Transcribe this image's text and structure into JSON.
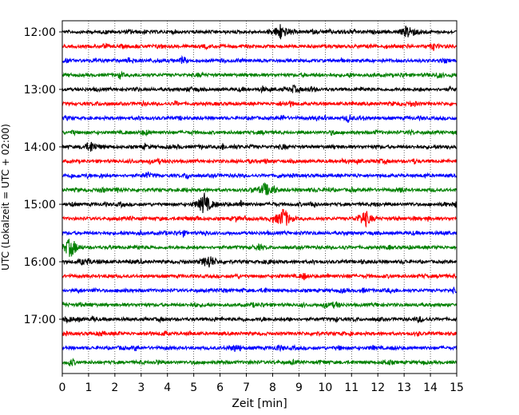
{
  "chart_data": {
    "type": "line",
    "title": "",
    "xlabel": "Zeit  [min]",
    "ylabel": "UTC (Lokalzeit = UTC + 02:00)",
    "xlim": [
      0,
      15
    ],
    "x_ticks": [
      "0",
      "1",
      "2",
      "3",
      "4",
      "5",
      "6",
      "7",
      "8",
      "9",
      "10",
      "11",
      "12",
      "13",
      "14",
      "15"
    ],
    "y_ticks": [
      {
        "label": "12:00",
        "trace": 0
      },
      {
        "label": "13:00",
        "trace": 4
      },
      {
        "label": "14:00",
        "trace": 8
      },
      {
        "label": "15:00",
        "trace": 12
      },
      {
        "label": "16:00",
        "trace": 16
      },
      {
        "label": "17:00",
        "trace": 20
      }
    ],
    "grid": "vertical dotted",
    "trace_colors": [
      "#000000",
      "#ff0000",
      "#0000ff",
      "#008000"
    ],
    "traces_count": 24,
    "events": [
      {
        "trace": 0,
        "minute": 8.3,
        "amplitude": 1.0
      },
      {
        "trace": 0,
        "minute": 13.2,
        "amplitude": 0.8
      },
      {
        "trace": 1,
        "minute": 14.1,
        "amplitude": 0.5
      },
      {
        "trace": 2,
        "minute": 4.6,
        "amplitude": 0.6
      },
      {
        "trace": 3,
        "minute": 2.2,
        "amplitude": 0.4
      },
      {
        "trace": 4,
        "minute": 8.8,
        "amplitude": 0.5
      },
      {
        "trace": 4,
        "minute": 9.5,
        "amplitude": 0.35
      },
      {
        "trace": 5,
        "minute": 8.7,
        "amplitude": 0.3
      },
      {
        "trace": 6,
        "minute": 10.9,
        "amplitude": 0.5
      },
      {
        "trace": 8,
        "minute": 1.1,
        "amplitude": 0.7
      },
      {
        "trace": 8,
        "minute": 6.1,
        "amplitude": 0.35
      },
      {
        "trace": 8,
        "minute": 8.4,
        "amplitude": 0.3
      },
      {
        "trace": 9,
        "minute": 13.4,
        "amplitude": 0.3
      },
      {
        "trace": 10,
        "minute": 3.2,
        "amplitude": 0.3
      },
      {
        "trace": 11,
        "minute": 7.7,
        "amplitude": 0.8
      },
      {
        "trace": 11,
        "minute": 8.0,
        "amplitude": 0.6
      },
      {
        "trace": 11,
        "minute": 12.9,
        "amplitude": 0.3
      },
      {
        "trace": 12,
        "minute": 5.4,
        "amplitude": 1.4
      },
      {
        "trace": 12,
        "minute": 6.8,
        "amplitude": 0.4
      },
      {
        "trace": 12,
        "minute": 15.0,
        "amplitude": 0.4
      },
      {
        "trace": 13,
        "minute": 8.4,
        "amplitude": 1.3
      },
      {
        "trace": 13,
        "minute": 11.5,
        "amplitude": 1.1
      },
      {
        "trace": 13,
        "minute": 6.6,
        "amplitude": 0.3
      },
      {
        "trace": 14,
        "minute": 4.6,
        "amplitude": 0.3
      },
      {
        "trace": 15,
        "minute": 0.3,
        "amplitude": 1.1
      },
      {
        "trace": 16,
        "minute": 5.6,
        "amplitude": 0.8
      },
      {
        "trace": 16,
        "minute": 1.0,
        "amplitude": 0.35
      },
      {
        "trace": 16,
        "minute": 7.8,
        "amplitude": 0.3
      },
      {
        "trace": 17,
        "minute": 9.2,
        "amplitude": 0.35
      },
      {
        "trace": 18,
        "minute": 12.6,
        "amplitude": 0.25
      },
      {
        "trace": 19,
        "minute": 10.0,
        "amplitude": 0.25
      },
      {
        "trace": 20,
        "minute": 13.6,
        "amplitude": 0.4
      },
      {
        "trace": 20,
        "minute": 1.2,
        "amplitude": 0.25
      },
      {
        "trace": 21,
        "minute": 3.3,
        "amplitude": 0.2
      },
      {
        "trace": 22,
        "minute": 2.8,
        "amplitude": 0.3
      },
      {
        "trace": 22,
        "minute": 8.2,
        "amplitude": 0.3
      },
      {
        "trace": 23,
        "minute": 0.3,
        "amplitude": 0.35
      },
      {
        "trace": 23,
        "minute": 3.6,
        "amplitude": 0.3
      }
    ]
  }
}
